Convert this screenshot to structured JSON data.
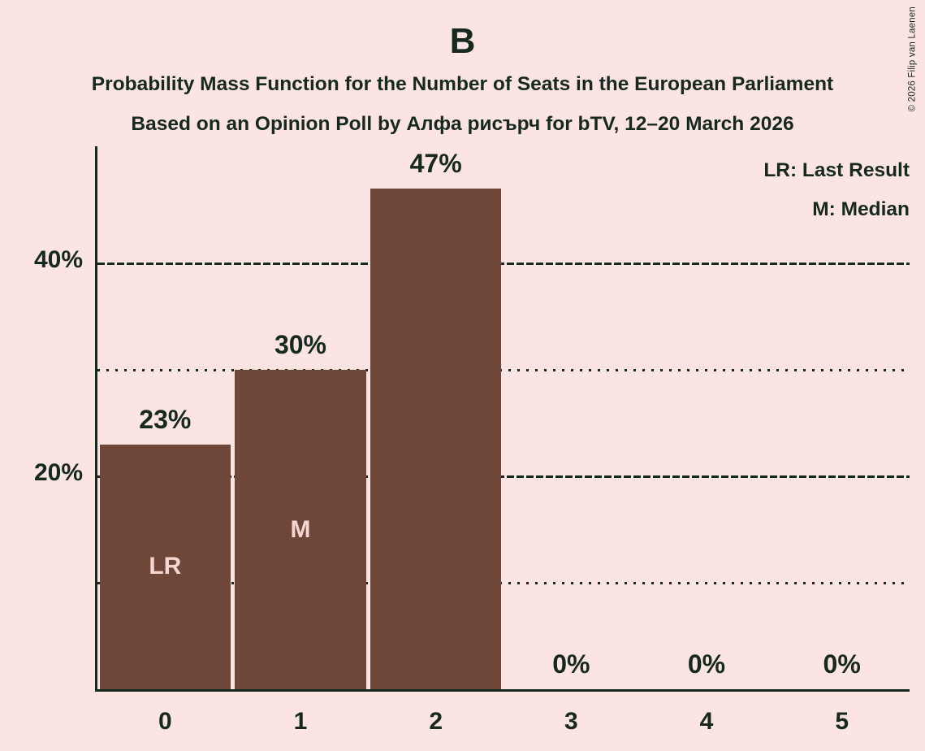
{
  "title": "B",
  "subtitle_line1": "Probability Mass Function for the Number of Seats in the European Parliament",
  "subtitle_line2": "Based on an Opinion Poll by Алфа рисърч for bTV, 12–20 March 2026",
  "legend": {
    "lr_label": "LR: Last Result",
    "m_label": "M: Median"
  },
  "copyright": "© 2026 Filip van Laenen",
  "colors": {
    "background": "#fce4e2",
    "bar": "#6f4739",
    "text": "#15291f",
    "bar_label_text": "#f6d6d1"
  },
  "chart_data": {
    "type": "bar",
    "title": "B",
    "categories": [
      "0",
      "1",
      "2",
      "3",
      "4",
      "5"
    ],
    "values": [
      23,
      30,
      47,
      0,
      0,
      0
    ],
    "value_labels": [
      "23%",
      "30%",
      "47%",
      "0%",
      "0%",
      "0%"
    ],
    "bar_markers": [
      "LR",
      "M",
      "",
      "",
      "",
      ""
    ],
    "xlabel": "",
    "ylabel": "",
    "ylim": [
      0,
      51
    ],
    "yticks": [
      {
        "value": 20,
        "label": "20%"
      },
      {
        "value": 40,
        "label": "40%"
      }
    ],
    "gridlines": [
      {
        "value": 10,
        "style": "dotted"
      },
      {
        "value": 20,
        "style": "dashed"
      },
      {
        "value": 30,
        "style": "dotted"
      },
      {
        "value": 40,
        "style": "dashed"
      }
    ],
    "grid": true,
    "legend_position": "top-right",
    "legend_entries": [
      "LR: Last Result",
      "M: Median"
    ]
  }
}
